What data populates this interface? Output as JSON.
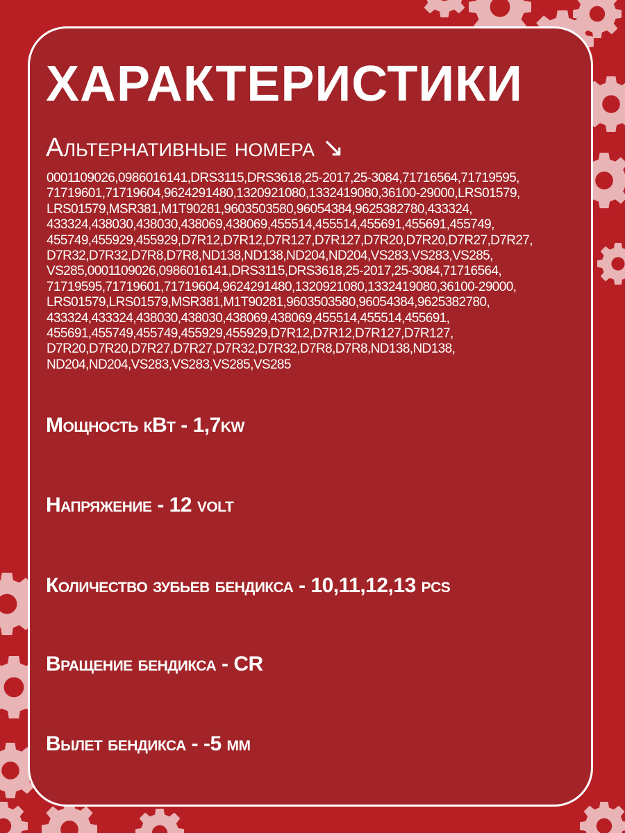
{
  "title": "ХАРАКТЕРИСТИКИ",
  "subtitle": "Альтернативные номера ↘",
  "alternative_numbers_lines": [
    "0001109026,0986016141,DRS3115,DRS3618,25-2017,25-3084,71716564,71719595,",
    "71719601,71719604,9624291480,1320921080,1332419080,36100-29000,LRS01579,",
    "LRS01579,MSR381,M1T90281,9603503580,96054384,9625382780,433324,",
    "433324,438030,438030,438069,438069,455514,455514,455691,455691,455749,",
    "455749,455929,455929,D7R12,D7R12,D7R127,D7R127,D7R20,D7R20,D7R27,D7R27,",
    "D7R32,D7R32,D7R8,D7R8,ND138,ND138,ND204,ND204,VS283,VS283,VS285,",
    "VS285,0001109026,0986016141,DRS3115,DRS3618,25-2017,25-3084,71716564,",
    "71719595,71719601,71719604,9624291480,1320921080,1332419080,36100-29000,",
    "LRS01579,LRS01579,MSR381,M1T90281,9603503580,96054384,9625382780,",
    "433324,433324,438030,438030,438069,438069,455514,455514,455691,",
    "455691,455749,455749,455929,455929,D7R12,D7R12,D7R127,D7R127,",
    "D7R20,D7R20,D7R27,D7R27,D7R32,D7R32,D7R8,D7R8,ND138,ND138,",
    "ND204,ND204,VS283,VS283,VS285,VS285"
  ],
  "specs": [
    "Мощность кВт - 1,7kw",
    "Напряжение - 12 volt",
    "Количество зубьев бендикса - 10,11,12,13 pcs",
    "Вращение бендикса - CR",
    "Вылет бендикса -  -5 мм"
  ],
  "colors": {
    "background": "#b81f24",
    "card": "#a22428",
    "gear": "#e8b4b6",
    "text": "#ffffff"
  },
  "decorations": [
    "gear-icon"
  ]
}
